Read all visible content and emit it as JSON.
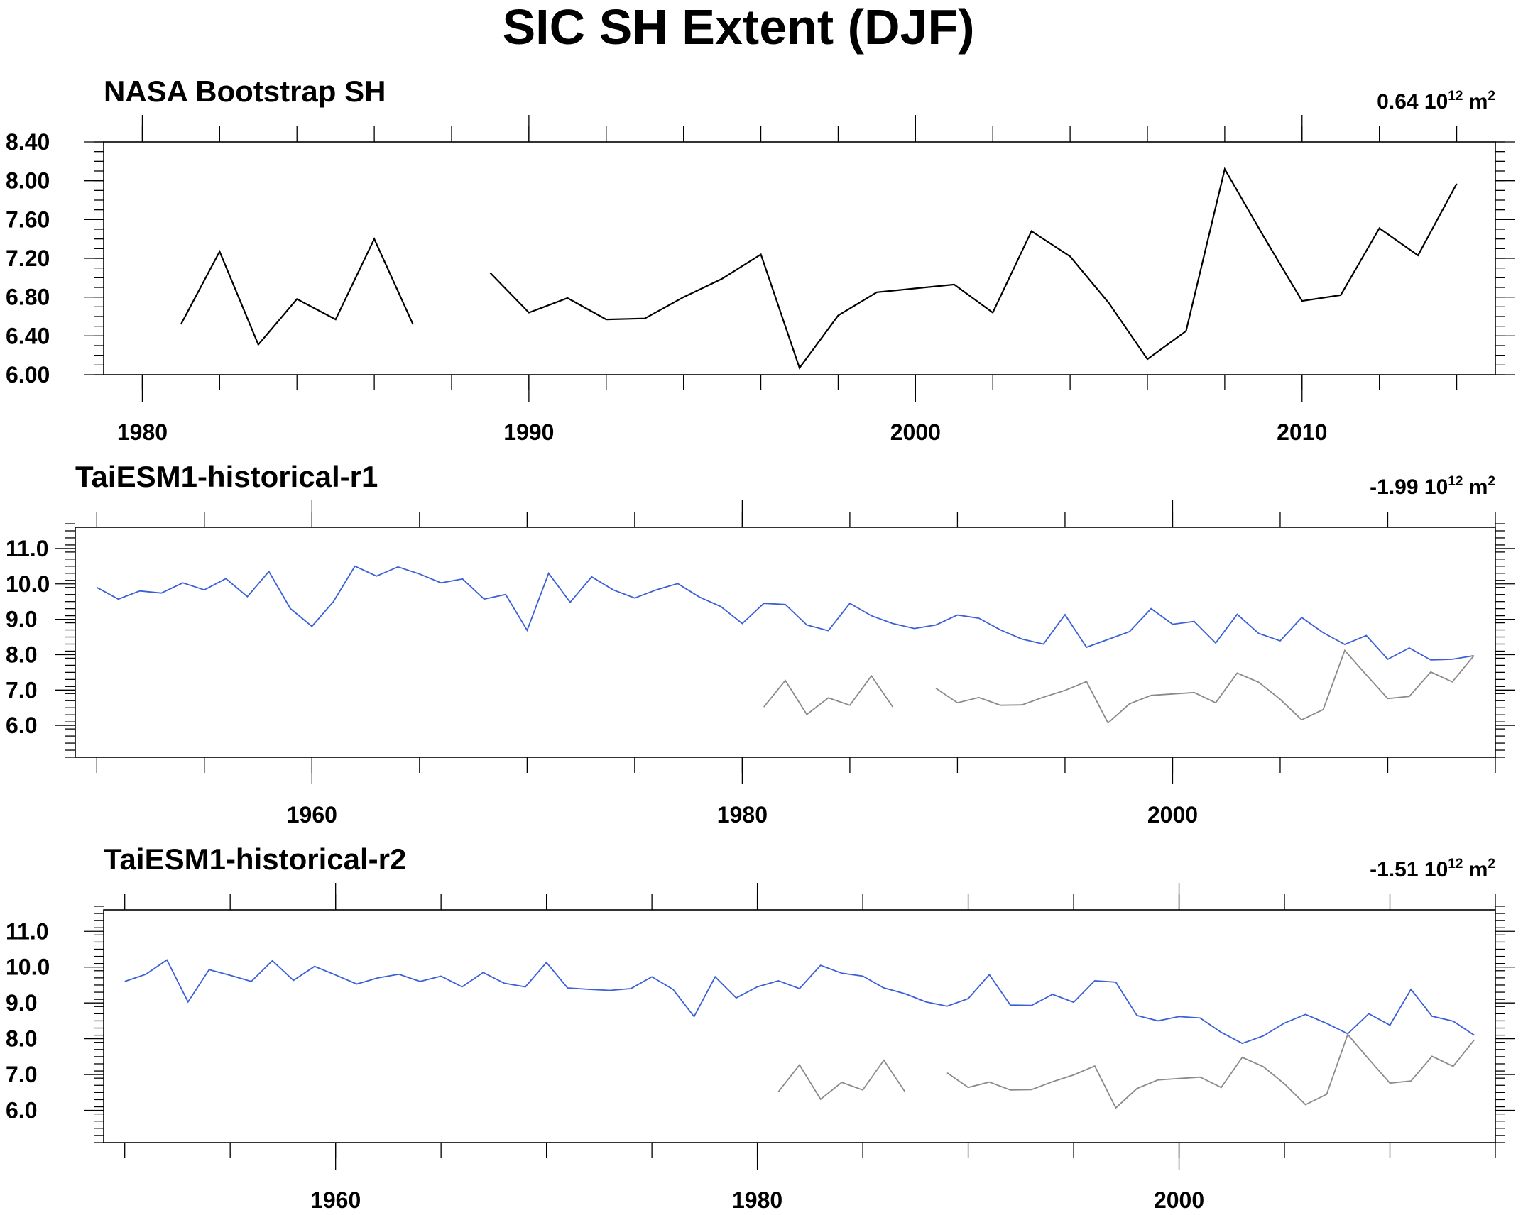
{
  "figure": {
    "title": "SIC SH Extent (DJF)",
    "colors": {
      "model": "#3a5fd6",
      "obs_overlay": "#8a8a8a",
      "obs": "#000000"
    }
  },
  "chart_data": [
    {
      "type": "line",
      "title": "NASA Bootstrap SH",
      "right_label": {
        "value": "0.64",
        "unit_prefix": "10",
        "unit_exp": "12",
        "unit": "m",
        "unit_unit_exp": "2"
      },
      "xlim": [
        1979,
        2015
      ],
      "ylim": [
        6.0,
        8.4
      ],
      "y_tick_labels": [
        "6.00",
        "6.40",
        "6.80",
        "7.20",
        "7.60",
        "8.00",
        "8.40"
      ],
      "x_tick_labels": [
        "1980",
        "1990",
        "2000",
        "2010"
      ],
      "series": [
        {
          "role": "obs",
          "x": [
            1981,
            1982,
            1983,
            1984,
            1985,
            1986,
            1987,
            1988,
            1989,
            1990,
            1991,
            1992,
            1993,
            1994,
            1995,
            1996,
            1997,
            1998,
            1999,
            2000,
            2001,
            2002,
            2003,
            2004,
            2005,
            2006,
            2007,
            2008,
            2009,
            2010,
            2011,
            2012,
            2013,
            2014
          ],
          "y": [
            6.52,
            7.27,
            6.31,
            6.78,
            6.57,
            7.4,
            6.52,
            null,
            7.05,
            6.64,
            6.79,
            6.57,
            6.58,
            6.8,
            6.99,
            7.24,
            6.07,
            6.61,
            6.85,
            6.89,
            6.93,
            6.64,
            7.48,
            7.22,
            6.74,
            6.16,
            6.45,
            8.12,
            7.43,
            6.76,
            6.82,
            7.51,
            7.23,
            7.97
          ]
        }
      ]
    },
    {
      "type": "line",
      "title": "TaiESM1-historical-r1",
      "right_label": {
        "value": "-1.99",
        "unit_prefix": "10",
        "unit_exp": "12",
        "unit": "m",
        "unit_unit_exp": "2"
      },
      "xlim": [
        1949,
        2015
      ],
      "ylim": [
        5.1,
        11.6
      ],
      "y_tick_labels": [
        "6.0",
        "7.0",
        "8.0",
        "9.0",
        "10.0",
        "11.0"
      ],
      "x_tick_labels": [
        "1960",
        "1980",
        "2000"
      ],
      "series": [
        {
          "role": "model",
          "x": [
            1950,
            1951,
            1952,
            1953,
            1954,
            1955,
            1956,
            1957,
            1958,
            1959,
            1960,
            1961,
            1962,
            1963,
            1964,
            1965,
            1966,
            1967,
            1968,
            1969,
            1970,
            1971,
            1972,
            1973,
            1974,
            1975,
            1976,
            1977,
            1978,
            1979,
            1980,
            1981,
            1982,
            1983,
            1984,
            1985,
            1986,
            1987,
            1988,
            1989,
            1990,
            1991,
            1992,
            1993,
            1994,
            1995,
            1996,
            1997,
            1998,
            1999,
            2000,
            2001,
            2002,
            2003,
            2004,
            2005,
            2006,
            2007,
            2008,
            2009,
            2010,
            2011,
            2012,
            2013,
            2014
          ],
          "y": [
            9.9,
            9.57,
            9.8,
            9.74,
            10.03,
            9.83,
            10.15,
            9.64,
            10.35,
            9.3,
            8.8,
            9.5,
            10.5,
            10.22,
            10.48,
            10.28,
            10.03,
            10.14,
            9.57,
            9.7,
            8.69,
            10.3,
            9.48,
            10.2,
            9.83,
            9.6,
            9.83,
            10.01,
            9.63,
            9.36,
            8.88,
            9.45,
            9.42,
            8.84,
            8.68,
            9.45,
            9.1,
            8.88,
            8.74,
            8.84,
            9.12,
            9.03,
            8.7,
            8.44,
            8.3,
            9.13,
            8.21,
            8.43,
            8.65,
            9.3,
            8.86,
            8.94,
            8.33,
            9.14,
            8.6,
            8.39,
            9.05,
            8.62,
            8.29,
            8.54,
            7.87,
            8.19,
            7.85,
            7.87,
            7.97
          ]
        },
        {
          "role": "obs_overlay",
          "x": [
            1981,
            1982,
            1983,
            1984,
            1985,
            1986,
            1987,
            1988,
            1989,
            1990,
            1991,
            1992,
            1993,
            1994,
            1995,
            1996,
            1997,
            1998,
            1999,
            2000,
            2001,
            2002,
            2003,
            2004,
            2005,
            2006,
            2007,
            2008,
            2009,
            2010,
            2011,
            2012,
            2013,
            2014
          ],
          "y": [
            6.52,
            7.27,
            6.31,
            6.78,
            6.57,
            7.4,
            6.52,
            null,
            7.05,
            6.64,
            6.79,
            6.57,
            6.58,
            6.8,
            6.99,
            7.24,
            6.07,
            6.61,
            6.85,
            6.89,
            6.93,
            6.64,
            7.48,
            7.22,
            6.74,
            6.16,
            6.45,
            8.12,
            7.43,
            6.76,
            6.82,
            7.51,
            7.23,
            7.97
          ]
        }
      ]
    },
    {
      "type": "line",
      "title": "TaiESM1-historical-r2",
      "right_label": {
        "value": "-1.51",
        "unit_prefix": "10",
        "unit_exp": "12",
        "unit": "m",
        "unit_unit_exp": "2"
      },
      "xlim": [
        1949,
        2015
      ],
      "ylim": [
        5.1,
        11.6
      ],
      "y_tick_labels": [
        "6.0",
        "7.0",
        "8.0",
        "9.0",
        "10.0",
        "11.0"
      ],
      "x_tick_labels": [
        "1960",
        "1980",
        "2000"
      ],
      "series": [
        {
          "role": "model",
          "x": [
            1950,
            1951,
            1952,
            1953,
            1954,
            1955,
            1956,
            1957,
            1958,
            1959,
            1960,
            1961,
            1962,
            1963,
            1964,
            1965,
            1966,
            1967,
            1968,
            1969,
            1970,
            1971,
            1972,
            1973,
            1974,
            1975,
            1976,
            1977,
            1978,
            1979,
            1980,
            1981,
            1982,
            1983,
            1984,
            1985,
            1986,
            1987,
            1988,
            1989,
            1990,
            1991,
            1992,
            1993,
            1994,
            1995,
            1996,
            1997,
            1998,
            1999,
            2000,
            2001,
            2002,
            2003,
            2004,
            2005,
            2006,
            2007,
            2008,
            2009,
            2010,
            2011,
            2012,
            2013,
            2014
          ],
          "y": [
            9.6,
            9.8,
            10.2,
            9.03,
            9.93,
            9.77,
            9.6,
            10.18,
            9.63,
            10.02,
            9.78,
            9.53,
            9.7,
            9.8,
            9.6,
            9.75,
            9.45,
            9.85,
            9.55,
            9.45,
            10.13,
            9.42,
            9.38,
            9.35,
            9.4,
            9.73,
            9.38,
            8.62,
            9.73,
            9.14,
            9.45,
            9.62,
            9.4,
            10.05,
            9.83,
            9.75,
            9.42,
            9.26,
            9.03,
            8.91,
            9.12,
            9.79,
            8.94,
            8.93,
            9.24,
            9.02,
            9.62,
            9.58,
            8.65,
            8.5,
            8.62,
            8.58,
            8.18,
            7.87,
            8.08,
            8.44,
            8.68,
            8.43,
            8.14,
            8.7,
            8.38,
            9.38,
            8.63,
            8.49,
            8.1
          ]
        },
        {
          "role": "obs_overlay",
          "x": [
            1981,
            1982,
            1983,
            1984,
            1985,
            1986,
            1987,
            1988,
            1989,
            1990,
            1991,
            1992,
            1993,
            1994,
            1995,
            1996,
            1997,
            1998,
            1999,
            2000,
            2001,
            2002,
            2003,
            2004,
            2005,
            2006,
            2007,
            2008,
            2009,
            2010,
            2011,
            2012,
            2013,
            2014
          ],
          "y": [
            6.52,
            7.27,
            6.31,
            6.78,
            6.57,
            7.4,
            6.52,
            null,
            7.05,
            6.64,
            6.79,
            6.57,
            6.58,
            6.8,
            6.99,
            7.24,
            6.07,
            6.61,
            6.85,
            6.89,
            6.93,
            6.64,
            7.48,
            7.22,
            6.74,
            6.16,
            6.45,
            8.12,
            7.43,
            6.76,
            6.82,
            7.51,
            7.23,
            7.97
          ]
        }
      ]
    }
  ]
}
